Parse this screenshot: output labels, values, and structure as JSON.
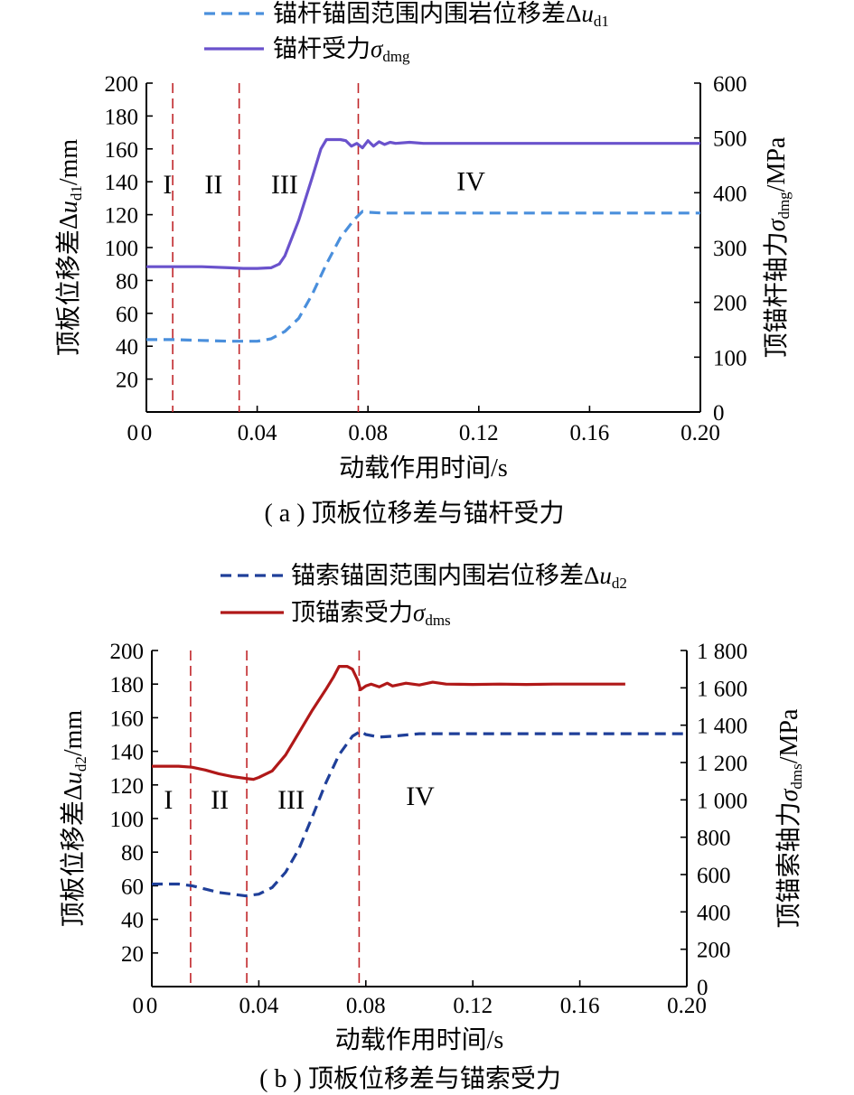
{
  "chart_data": [
    {
      "type": "line",
      "legend": [
        {
          "label_cn": "锚杆锚固范围内围岩位移差Δ",
          "label_sym": "u",
          "label_sub": "d1",
          "style": "dashed",
          "color": "#4a8fdc"
        },
        {
          "label_cn": "锚杆受力",
          "label_sym": "σ",
          "label_sub": "dmg",
          "style": "solid",
          "color": "#6a52cc"
        }
      ],
      "xlabel": "动载作用时间/s",
      "ylabel_left": {
        "text": "顶板位移差Δ",
        "sym": "u",
        "sub": "d1",
        "unit": "/mm"
      },
      "ylabel_right": {
        "text": "顶锚杆轴力",
        "sym": "σ",
        "sub": "dmg",
        "unit": "/MPa"
      },
      "caption": "( a ) 顶板位移差与锚杆受力",
      "xlim": [
        0,
        0.2
      ],
      "ylim_left": [
        0,
        200
      ],
      "ylim_right": [
        0,
        600
      ],
      "x_ticks": [
        "0",
        "0.04",
        "0.08",
        "0.12",
        "0.16",
        "0.20"
      ],
      "y_left_ticks": [
        "20",
        "40",
        "60",
        "80",
        "100",
        "120",
        "140",
        "160",
        "180",
        "200"
      ],
      "y_right_ticks": [
        "0",
        "100",
        "200",
        "300",
        "400",
        "500",
        "600"
      ],
      "phase_lines_x": [
        0.0095,
        0.0335,
        0.0765
      ],
      "phase_labels": [
        {
          "text": "I",
          "x": 0.006,
          "y": 133
        },
        {
          "text": "II",
          "x": 0.021,
          "y": 133
        },
        {
          "text": "III",
          "x": 0.045,
          "y": 133
        },
        {
          "text": "IV",
          "x": 0.112,
          "y": 135
        }
      ],
      "series": [
        {
          "name": "锚杆锚固范围内围岩位移差Δu_d1",
          "axis": "left",
          "x": [
            0,
            0.01,
            0.02,
            0.03,
            0.035,
            0.04,
            0.045,
            0.05,
            0.055,
            0.06,
            0.065,
            0.07,
            0.075,
            0.078,
            0.08,
            0.085,
            0.09,
            0.1,
            0.12,
            0.14,
            0.16,
            0.18,
            0.2
          ],
          "values": [
            44,
            44,
            43.5,
            43,
            43,
            43,
            44.5,
            49,
            57,
            72,
            90,
            106,
            117,
            122,
            121.5,
            121,
            121,
            121,
            121,
            121,
            121,
            121,
            121
          ]
        },
        {
          "name": "锚杆受力σ_dmg",
          "axis": "right",
          "x": [
            0,
            0.01,
            0.02,
            0.03,
            0.035,
            0.04,
            0.045,
            0.048,
            0.05,
            0.055,
            0.06,
            0.063,
            0.065,
            0.07,
            0.072,
            0.074,
            0.076,
            0.078,
            0.08,
            0.082,
            0.084,
            0.086,
            0.088,
            0.09,
            0.095,
            0.1,
            0.11,
            0.12,
            0.14,
            0.16,
            0.18,
            0.2
          ],
          "values": [
            265,
            265,
            265,
            263,
            262,
            262,
            263,
            270,
            285,
            350,
            430,
            480,
            497,
            497,
            495,
            485,
            490,
            482,
            495,
            485,
            493,
            488,
            492,
            490,
            492,
            490,
            490,
            490,
            490,
            490,
            490,
            490
          ]
        }
      ]
    },
    {
      "type": "line",
      "legend": [
        {
          "label_cn": "锚索锚固范围内围岩位移差Δ",
          "label_sym": "u",
          "label_sub": "d2",
          "style": "dashed",
          "color": "#1f3f99"
        },
        {
          "label_cn": "顶锚索受力",
          "label_sym": "σ",
          "label_sub": "dms",
          "style": "solid",
          "color": "#b01818"
        }
      ],
      "xlabel": "动载作用时间/s",
      "ylabel_left": {
        "text": "顶板位移差Δ",
        "sym": "u",
        "sub": "d2",
        "unit": "/mm"
      },
      "ylabel_right": {
        "text": "顶锚索轴力",
        "sym": "σ",
        "sub": "dms",
        "unit": "/MPa"
      },
      "caption": "( b ) 顶板位移差与锚索受力",
      "xlim": [
        0,
        0.2
      ],
      "ylim_left": [
        0,
        200
      ],
      "ylim_right": [
        0,
        1800
      ],
      "x_ticks": [
        "0",
        "0.04",
        "0.08",
        "0.12",
        "0.16",
        "0.20"
      ],
      "y_left_ticks": [
        "20",
        "40",
        "60",
        "80",
        "100",
        "120",
        "140",
        "160",
        "180",
        "200"
      ],
      "y_right_ticks": [
        "0",
        "200",
        "400",
        "600",
        "800",
        "1 000",
        "1 200",
        "1 400",
        "1 600",
        "1 800"
      ],
      "phase_lines_x": [
        0.0145,
        0.0355,
        0.0775
      ],
      "phase_labels": [
        {
          "text": "I",
          "x": 0.0045,
          "y": 106
        },
        {
          "text": "II",
          "x": 0.022,
          "y": 106
        },
        {
          "text": "III",
          "x": 0.047,
          "y": 106
        },
        {
          "text": "IV",
          "x": 0.095,
          "y": 108
        }
      ],
      "series": [
        {
          "name": "锚索锚固范围内围岩位移差Δu_d2",
          "axis": "left",
          "x": [
            0,
            0.01,
            0.015,
            0.02,
            0.025,
            0.03,
            0.035,
            0.04,
            0.045,
            0.05,
            0.055,
            0.06,
            0.065,
            0.07,
            0.075,
            0.078,
            0.08,
            0.085,
            0.09,
            0.1,
            0.12,
            0.14,
            0.16,
            0.18,
            0.2
          ],
          "values": [
            61,
            61,
            60,
            58,
            56,
            55,
            54,
            55,
            59,
            68,
            82,
            101,
            121,
            138,
            149,
            152,
            150,
            148.5,
            149,
            150.5,
            150.5,
            150.5,
            150.5,
            150.5,
            150.5
          ]
        },
        {
          "name": "顶锚索受力σ_dms",
          "axis": "right",
          "x": [
            0,
            0.01,
            0.015,
            0.02,
            0.025,
            0.03,
            0.035,
            0.038,
            0.04,
            0.045,
            0.05,
            0.055,
            0.06,
            0.065,
            0.068,
            0.07,
            0.073,
            0.075,
            0.077,
            0.078,
            0.08,
            0.082,
            0.085,
            0.088,
            0.09,
            0.095,
            0.1,
            0.105,
            0.11,
            0.12,
            0.13,
            0.14,
            0.15,
            0.16,
            0.17,
            0.177
          ],
          "values": [
            1180,
            1180,
            1175,
            1160,
            1140,
            1125,
            1115,
            1110,
            1120,
            1155,
            1240,
            1360,
            1480,
            1590,
            1660,
            1715,
            1715,
            1700,
            1640,
            1590,
            1610,
            1620,
            1605,
            1625,
            1610,
            1625,
            1615,
            1630,
            1620,
            1618,
            1620,
            1618,
            1620,
            1620,
            1620,
            1620
          ]
        }
      ]
    }
  ]
}
